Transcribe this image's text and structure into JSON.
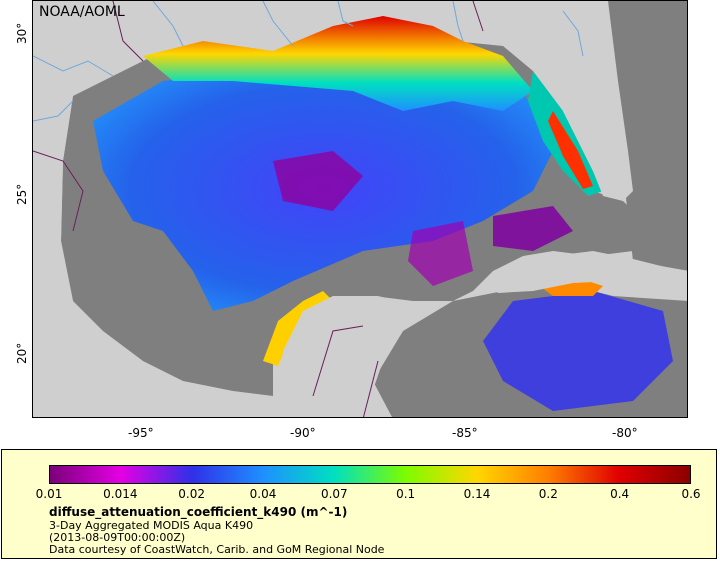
{
  "map": {
    "credit": "NOAA/AOML",
    "x_ticks": [
      {
        "label": "-95°",
        "lon": -95
      },
      {
        "label": "-90°",
        "lon": -90
      },
      {
        "label": "-85°",
        "lon": -85
      },
      {
        "label": "-80°",
        "lon": -80
      }
    ],
    "y_ticks": [
      {
        "label": "30°",
        "lat": 30
      },
      {
        "label": "25°",
        "lat": 25
      },
      {
        "label": "20°",
        "lat": 20
      }
    ],
    "lon_range": [
      -98.4,
      -78.0
    ],
    "lat_range": [
      18.2,
      31.1
    ],
    "colors": {
      "land": "#cfcfcf",
      "nodata": "#7f7f7f",
      "rivers": "#6fa8dc",
      "borders": "#6b1f5a"
    }
  },
  "legend": {
    "labels": [
      "0.01",
      "0.014",
      "0.02",
      "0.04",
      "0.07",
      "0.1",
      "0.14",
      "0.2",
      "0.4",
      "0.6"
    ],
    "colorscale": [
      "#7a007a",
      "#e400e4",
      "#3030e8",
      "#1e90ff",
      "#00e0c0",
      "#7cfc00",
      "#ffd700",
      "#ff7f00",
      "#e00000",
      "#8b0000"
    ],
    "variable": "diffuse_attenuation_coefficient_k490 (m^-1)",
    "line1": "3-Day Aggregated MODIS Aqua K490",
    "line2": "(2013-08-09T00:00:00Z)",
    "line3": "Data courtesy of CoastWatch, Carib. and GoM Regional Node"
  }
}
